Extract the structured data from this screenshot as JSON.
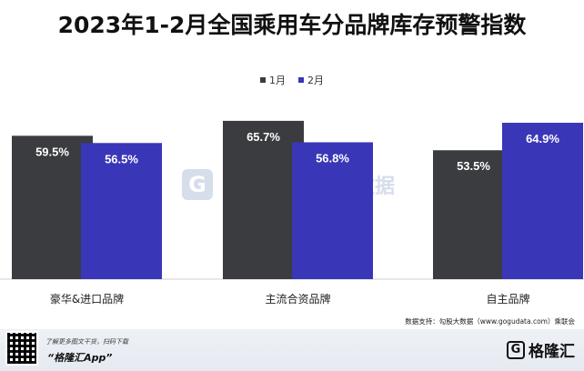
{
  "chart_data": {
    "type": "bar",
    "title": "2023年1-2月全国乘用车分品牌库存预警指数",
    "categories": [
      "豪华&进口品牌",
      "主流合资品牌",
      "自主品牌"
    ],
    "series": [
      {
        "name": "1月",
        "values": [
          59.5,
          65.7,
          53.5
        ],
        "labels": [
          "59.5%",
          "65.7%",
          "53.5%"
        ],
        "color": "#3a3c3f"
      },
      {
        "name": "2月",
        "values": [
          56.5,
          56.8,
          64.9
        ],
        "labels": [
          "56.5%",
          "56.8%",
          "64.9%"
        ],
        "color": "#3a36b8"
      }
    ],
    "ylim": [
      0,
      80
    ],
    "grid": false,
    "legend_position": "top-center"
  },
  "source": "数据支持：勾股大数据（www.gogudata.com）乘联会",
  "watermark": {
    "text": "数据"
  },
  "footer": {
    "hint": "了解更多图文干货，扫码下载",
    "app": "“格隆汇App”",
    "brand": "格隆汇",
    "brand_logo": "G"
  }
}
